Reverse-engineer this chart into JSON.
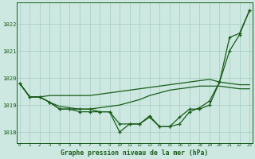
{
  "title": "Graphe pression niveau de la mer (hPa)",
  "background_color": "#cce8e0",
  "grid_color": "#aad0c8",
  "line_color": "#1a5c1a",
  "hours": [
    0,
    1,
    2,
    3,
    4,
    5,
    6,
    7,
    8,
    9,
    10,
    11,
    12,
    13,
    14,
    15,
    16,
    17,
    18,
    19,
    20,
    21,
    22,
    23
  ],
  "seriesA": [
    1019.8,
    1019.3,
    1019.3,
    1019.35,
    1019.35,
    1019.35,
    1019.35,
    1019.35,
    1019.4,
    1019.45,
    1019.5,
    1019.55,
    1019.6,
    1019.65,
    1019.7,
    1019.75,
    1019.8,
    1019.85,
    1019.9,
    1019.95,
    1019.85,
    1019.8,
    1019.75,
    1019.75
  ],
  "seriesB": [
    1019.8,
    1019.3,
    1019.3,
    1019.1,
    1018.95,
    1018.9,
    1018.85,
    1018.85,
    1018.9,
    1018.95,
    1019.0,
    1019.1,
    1019.2,
    1019.35,
    1019.45,
    1019.55,
    1019.6,
    1019.65,
    1019.7,
    1019.7,
    1019.7,
    1019.65,
    1019.6,
    1019.6
  ],
  "seriesC": [
    1019.8,
    1019.3,
    1019.3,
    1019.1,
    1018.85,
    1018.85,
    1018.75,
    1018.75,
    1018.75,
    1018.75,
    1018.3,
    1018.3,
    1018.3,
    1018.6,
    1018.2,
    1018.2,
    1018.55,
    1018.85,
    1018.85,
    1019.0,
    1019.85,
    1021.0,
    1021.6,
    1022.5
  ],
  "seriesD": [
    1019.8,
    1019.3,
    1019.3,
    1019.1,
    1018.85,
    1018.85,
    1018.85,
    1018.85,
    1018.75,
    1018.75,
    1018.0,
    1018.3,
    1018.3,
    1018.55,
    1018.2,
    1018.2,
    1018.3,
    1018.75,
    1018.9,
    1019.15,
    1019.85,
    1021.5,
    1021.65,
    1022.5
  ],
  "ylim": [
    1017.6,
    1022.8
  ],
  "yticks": [
    1018,
    1019,
    1020,
    1021,
    1022
  ],
  "figsize": [
    3.2,
    2.0
  ],
  "dpi": 100
}
